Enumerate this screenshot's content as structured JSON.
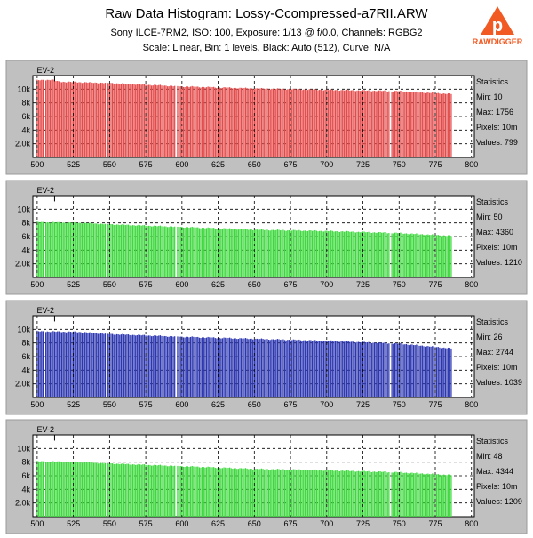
{
  "header": {
    "title": "Raw Data Histogram: Lossy-Ccompressed-a7RII.ARW",
    "subtitle1": "Sony ILCE-7RM2, ISO: 100, Exposure: 1/13 @ f/0.0, Channels: RGBG2",
    "subtitle2": "Scale: Linear, Bin: 1 levels, Black: Auto (512), Curve: N/A",
    "logo_text": "RAWDIGGER",
    "logo_icon": "rawdigger-logo-icon"
  },
  "colors": {
    "panel_bg": "#c0c0c0",
    "plot_bg": "#ffffff",
    "red": "#e34b4b",
    "green": "#3ed83e",
    "blue": "#2c36b0",
    "logo": "#f15a22"
  },
  "chart_data": [
    {
      "type": "bar",
      "channel": "R",
      "color": "#e34b4b",
      "marker_label": "EV-2",
      "marker_x": 512,
      "xlim": [
        497,
        802
      ],
      "ylim": [
        0,
        12000
      ],
      "xticks": [
        "500",
        "525",
        "550",
        "575",
        "600",
        "625",
        "650",
        "675",
        "700",
        "725",
        "750",
        "775",
        "800"
      ],
      "yticks": [
        "2.0k",
        "4k",
        "6k",
        "8k",
        "10k"
      ],
      "x_start": 500,
      "x_end": 786,
      "gaps": [
        505,
        548,
        596,
        744
      ],
      "profile": [
        [
          500,
          11300
        ],
        [
          510,
          11400
        ],
        [
          515,
          11100
        ],
        [
          550,
          10900
        ],
        [
          600,
          10400
        ],
        [
          650,
          10100
        ],
        [
          700,
          9900
        ],
        [
          750,
          9700
        ],
        [
          786,
          9300
        ]
      ],
      "stats": {
        "title": "Statistics",
        "min": "Min: 10",
        "max": "Max: 1756",
        "pixels": "Pixels: 10m",
        "values": "Values: 799"
      }
    },
    {
      "type": "bar",
      "channel": "G",
      "color": "#3ed83e",
      "marker_label": "EV-2",
      "marker_x": 512,
      "xlim": [
        497,
        802
      ],
      "ylim": [
        0,
        12000
      ],
      "xticks": [
        "500",
        "525",
        "550",
        "575",
        "600",
        "625",
        "650",
        "675",
        "700",
        "725",
        "750",
        "775",
        "800"
      ],
      "yticks": [
        "2.0k",
        "4k",
        "6k",
        "8k",
        "10k"
      ],
      "x_start": 500,
      "x_end": 786,
      "gaps": [
        505,
        548,
        596,
        744
      ],
      "profile": [
        [
          500,
          8100
        ],
        [
          530,
          8000
        ],
        [
          550,
          7800
        ],
        [
          600,
          7400
        ],
        [
          650,
          7000
        ],
        [
          700,
          6800
        ],
        [
          750,
          6500
        ],
        [
          786,
          6100
        ]
      ],
      "stats": {
        "title": "Statistics",
        "min": "Min: 50",
        "max": "Max: 4360",
        "pixels": "Pixels: 10m",
        "values": "Values: 1210"
      }
    },
    {
      "type": "bar",
      "channel": "B",
      "color": "#2c36b0",
      "marker_label": "EV-2",
      "marker_x": 512,
      "xlim": [
        497,
        802
      ],
      "ylim": [
        0,
        12000
      ],
      "xticks": [
        "500",
        "525",
        "550",
        "575",
        "600",
        "625",
        "650",
        "675",
        "700",
        "725",
        "750",
        "775",
        "800"
      ],
      "yticks": [
        "2.0k",
        "4k",
        "6k",
        "8k",
        "10k"
      ],
      "x_start": 500,
      "x_end": 786,
      "gaps": [
        505,
        548,
        596,
        744
      ],
      "profile": [
        [
          500,
          9700
        ],
        [
          530,
          9600
        ],
        [
          550,
          9300
        ],
        [
          600,
          8900
        ],
        [
          650,
          8600
        ],
        [
          700,
          8300
        ],
        [
          750,
          7900
        ],
        [
          786,
          7200
        ]
      ],
      "stats": {
        "title": "Statistics",
        "min": "Min: 26",
        "max": "Max: 2744",
        "pixels": "Pixels: 10m",
        "values": "Values: 1039"
      }
    },
    {
      "type": "bar",
      "channel": "G2",
      "color": "#3ed83e",
      "marker_label": "EV-2",
      "marker_x": 512,
      "xlim": [
        497,
        802
      ],
      "ylim": [
        0,
        12000
      ],
      "xticks": [
        "500",
        "525",
        "550",
        "575",
        "600",
        "625",
        "650",
        "675",
        "700",
        "725",
        "750",
        "775",
        "800"
      ],
      "yticks": [
        "2.0k",
        "4k",
        "6k",
        "8k",
        "10k"
      ],
      "x_start": 500,
      "x_end": 786,
      "gaps": [
        505,
        548,
        596,
        744
      ],
      "profile": [
        [
          500,
          8100
        ],
        [
          530,
          8000
        ],
        [
          550,
          7800
        ],
        [
          600,
          7400
        ],
        [
          650,
          7000
        ],
        [
          700,
          6800
        ],
        [
          750,
          6500
        ],
        [
          786,
          6100
        ]
      ],
      "stats": {
        "title": "Statistics",
        "min": "Min: 48",
        "max": "Max: 4344",
        "pixels": "Pixels: 10m",
        "values": "Values: 1209"
      }
    }
  ]
}
